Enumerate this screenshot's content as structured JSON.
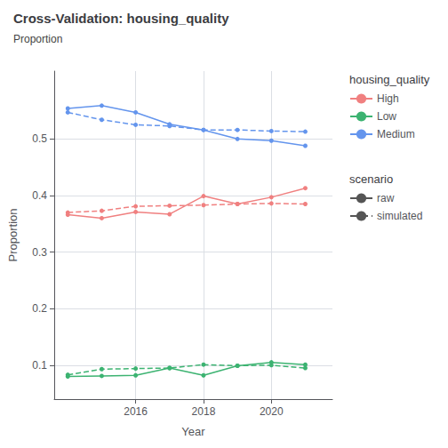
{
  "chart_data": {
    "type": "line",
    "title": "Cross-Validation: housing_quality",
    "subtitle": "Proportion",
    "xlabel": "Year",
    "ylabel": "Proportion",
    "x": [
      2014,
      2015,
      2016,
      2017,
      2018,
      2019,
      2020,
      2021
    ],
    "series": [
      {
        "name": "High",
        "scenario": "raw",
        "line_style": "solid",
        "color": "#f08080",
        "values": [
          0.366,
          0.36,
          0.371,
          0.367,
          0.399,
          0.385,
          0.397,
          0.413
        ]
      },
      {
        "name": "High",
        "scenario": "simulated",
        "line_style": "dashed",
        "color": "#f08080",
        "values": [
          0.37,
          0.373,
          0.381,
          0.382,
          0.383,
          0.385,
          0.386,
          0.385
        ]
      },
      {
        "name": "Low",
        "scenario": "raw",
        "line_style": "solid",
        "color": "#3cb371",
        "values": [
          0.08,
          0.081,
          0.082,
          0.095,
          0.082,
          0.099,
          0.105,
          0.101
        ]
      },
      {
        "name": "Low",
        "scenario": "simulated",
        "line_style": "dashed",
        "color": "#3cb371",
        "values": [
          0.083,
          0.093,
          0.094,
          0.095,
          0.101,
          0.099,
          0.1,
          0.095
        ]
      },
      {
        "name": "Medium",
        "scenario": "raw",
        "line_style": "solid",
        "color": "#6495ed",
        "values": [
          0.554,
          0.559,
          0.547,
          0.526,
          0.516,
          0.5,
          0.497,
          0.488
        ]
      },
      {
        "name": "Medium",
        "scenario": "simulated",
        "line_style": "dashed",
        "color": "#6495ed",
        "values": [
          0.547,
          0.534,
          0.525,
          0.523,
          0.516,
          0.516,
          0.514,
          0.513
        ]
      }
    ],
    "marker": "circle",
    "series_legend_title": "housing_quality",
    "scenario_legend_title": "scenario",
    "scenario_color": "#555555",
    "scenarios": [
      {
        "name": "raw",
        "line_style": "solid"
      },
      {
        "name": "simulated",
        "line_style": "dashed"
      }
    ],
    "xlim": [
      2013.6,
      2021.8
    ],
    "xticks": [
      2016,
      2018,
      2020
    ],
    "ylim": [
      0.04,
      0.62
    ],
    "yticks": [
      0.1,
      0.2,
      0.3,
      0.4,
      0.5
    ],
    "grid": true,
    "legend": "right"
  }
}
